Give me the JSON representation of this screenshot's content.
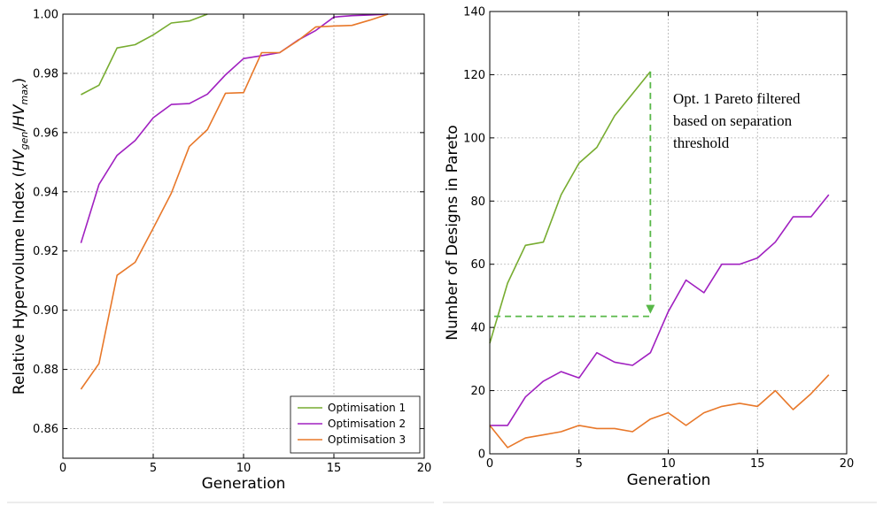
{
  "colors": {
    "opt1": "#77ac30",
    "opt2": "#a020c0",
    "opt3": "#e8782a",
    "grid": "#b0b0b0",
    "annotation": "#58b848"
  },
  "chart_data": [
    {
      "type": "line",
      "title": "",
      "xlabel": "Generation",
      "ylabel_main": "Relative Hypervolume Index (",
      "ylabel_hv1": "HV",
      "ylabel_sub1": "gen",
      "ylabel_slash": "/",
      "ylabel_hv2": "HV",
      "ylabel_sub2": "max",
      "ylabel_close": ")",
      "xlim": [
        0,
        20
      ],
      "ylim": [
        0.85,
        1.0
      ],
      "xticks": [
        "0",
        "5",
        "10",
        "15",
        "20"
      ],
      "yticks": [
        "0.86",
        "0.88",
        "0.90",
        "0.92",
        "0.94",
        "0.96",
        "0.98",
        "1.00"
      ],
      "grid": true,
      "legend_placement": "bottom-right",
      "series": [
        {
          "name": "Optimisation 1",
          "color_key": "opt1",
          "points": [
            [
              1,
              0.9728
            ],
            [
              2,
              0.976
            ],
            [
              3,
              0.9886
            ],
            [
              4,
              0.9897
            ],
            [
              5,
              0.993
            ],
            [
              6,
              0.997
            ],
            [
              7,
              0.9977
            ],
            [
              8,
              1.0
            ]
          ]
        },
        {
          "name": "Optimisation 2",
          "color_key": "opt2",
          "points": [
            [
              1,
              0.9227
            ],
            [
              2,
              0.9425
            ],
            [
              3,
              0.9523
            ],
            [
              4,
              0.9573
            ],
            [
              5,
              0.965
            ],
            [
              6,
              0.9695
            ],
            [
              7,
              0.9698
            ],
            [
              8,
              0.973
            ],
            [
              9,
              0.9795
            ],
            [
              10,
              0.985
            ],
            [
              11,
              0.986
            ],
            [
              12,
              0.987
            ],
            [
              13,
              0.9912
            ],
            [
              14,
              0.9945
            ],
            [
              15,
              0.999
            ],
            [
              16,
              0.9995
            ],
            [
              17,
              0.9997
            ],
            [
              18,
              1.0
            ]
          ]
        },
        {
          "name": "Optimisation 3",
          "color_key": "opt3",
          "points": [
            [
              1,
              0.8733
            ],
            [
              2,
              0.882
            ],
            [
              3,
              0.9118
            ],
            [
              4,
              0.9162
            ],
            [
              5,
              0.9277
            ],
            [
              6,
              0.9395
            ],
            [
              7,
              0.9553
            ],
            [
              8,
              0.961
            ],
            [
              9,
              0.9733
            ],
            [
              10,
              0.9735
            ],
            [
              11,
              0.987
            ],
            [
              12,
              0.987
            ],
            [
              13,
              0.991
            ],
            [
              14,
              0.9957
            ],
            [
              15,
              0.996
            ],
            [
              16,
              0.9962
            ],
            [
              17,
              0.998
            ],
            [
              18,
              1.0
            ]
          ]
        }
      ]
    },
    {
      "type": "line",
      "title": "",
      "xlabel": "Generation",
      "ylabel": "Number of Designs in Pareto",
      "xlim": [
        0,
        20
      ],
      "ylim": [
        0,
        140
      ],
      "xticks": [
        "0",
        "5",
        "10",
        "15",
        "20"
      ],
      "yticks": [
        "0",
        "20",
        "40",
        "60",
        "80",
        "100",
        "120",
        "140"
      ],
      "grid": true,
      "series": [
        {
          "name": "Optimisation 1",
          "color_key": "opt1",
          "points": [
            [
              0,
              35
            ],
            [
              1,
              54
            ],
            [
              2,
              66
            ],
            [
              3,
              67
            ],
            [
              4,
              82
            ],
            [
              5,
              92
            ],
            [
              6,
              97
            ],
            [
              7,
              107
            ],
            [
              8,
              114
            ],
            [
              9,
              121
            ]
          ]
        },
        {
          "name": "Optimisation 2",
          "color_key": "opt2",
          "points": [
            [
              0,
              9
            ],
            [
              1,
              9
            ],
            [
              2,
              18
            ],
            [
              3,
              23
            ],
            [
              4,
              26
            ],
            [
              5,
              24
            ],
            [
              6,
              32
            ],
            [
              7,
              29
            ],
            [
              8,
              28
            ],
            [
              9,
              32
            ],
            [
              10,
              45
            ],
            [
              11,
              55
            ],
            [
              12,
              51
            ],
            [
              13,
              60
            ],
            [
              14,
              60
            ],
            [
              15,
              62
            ],
            [
              16,
              67
            ],
            [
              17,
              75
            ],
            [
              18,
              75
            ],
            [
              19,
              82
            ]
          ]
        },
        {
          "name": "Optimisation 3",
          "color_key": "opt3",
          "points": [
            [
              0,
              9
            ],
            [
              1,
              2
            ],
            [
              2,
              5
            ],
            [
              3,
              6
            ],
            [
              4,
              7
            ],
            [
              5,
              9
            ],
            [
              6,
              8
            ],
            [
              7,
              8
            ],
            [
              8,
              7
            ],
            [
              9,
              11
            ],
            [
              10,
              13
            ],
            [
              11,
              9
            ],
            [
              12,
              13
            ],
            [
              13,
              15
            ],
            [
              14,
              16
            ],
            [
              15,
              15
            ],
            [
              16,
              20
            ],
            [
              17,
              14
            ],
            [
              18,
              19
            ],
            [
              19,
              25
            ]
          ]
        }
      ],
      "annotation": {
        "lines": [
          "Opt. 1 Pareto filtered",
          "based on separation",
          "threshold"
        ],
        "arrow_from": [
          9,
          121
        ],
        "arrow_to": [
          9,
          43.5
        ],
        "hline_from_x": 0.25,
        "hline_y": 43.5
      }
    }
  ]
}
